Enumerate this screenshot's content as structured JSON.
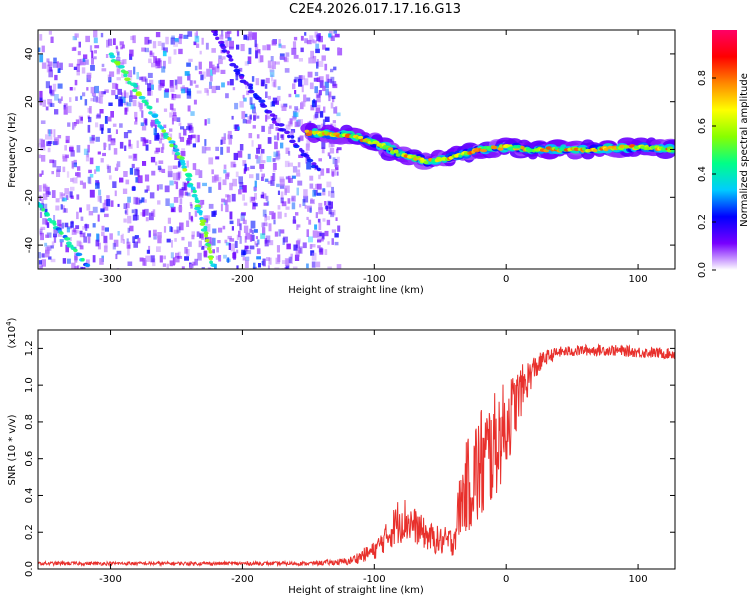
{
  "title": "C2E4.2026.017.17.16.G13",
  "colors": {
    "snr_line": "#e8302c",
    "axis": "#000000",
    "background": "#ffffff"
  },
  "chart_data": [
    {
      "type": "heatmap",
      "name": "spectrogram",
      "xlabel": "Height of straight line (km)",
      "ylabel": "Frequency (Hz)",
      "xlim": [
        -355,
        128
      ],
      "ylim": [
        -50,
        50
      ],
      "xticks": [
        -300,
        -200,
        -100,
        0,
        100
      ],
      "yticks": [
        -40,
        -20,
        0,
        20,
        40
      ],
      "colorbar": {
        "label": "Normalized spectral amplitude",
        "range": [
          0.0,
          1.0
        ],
        "ticks": [
          "0.0",
          "0.2",
          "0.4",
          "0.6",
          "0.8"
        ],
        "tick_values": [
          0.0,
          0.2,
          0.4,
          0.6,
          0.8
        ],
        "colormap": [
          "#ffffff",
          "#7700ff",
          "#0000ff",
          "#00ccff",
          "#00ff88",
          "#88ff00",
          "#ffff00",
          "#ff8800",
          "#ff0000",
          "#ff0066"
        ]
      },
      "features": [
        {
          "name": "noise region",
          "x_range": [
            -355,
            -128
          ],
          "y_range": [
            -50,
            50
          ],
          "level": 0.15
        },
        {
          "name": "diagonal track A",
          "points": [
            [
              -300,
              40
            ],
            [
              -270,
              17
            ],
            [
              -245,
              -5
            ],
            [
              -230,
              -30
            ],
            [
              -222,
              -50
            ]
          ],
          "level": 0.5
        },
        {
          "name": "diagonal track B",
          "points": [
            [
              -355,
              -22
            ],
            [
              -330,
              -40
            ],
            [
              -315,
              -50
            ]
          ],
          "level": 0.4
        },
        {
          "name": "diagonal track C",
          "points": [
            [
              -222,
              50
            ],
            [
              -200,
              30
            ],
            [
              -175,
              12
            ],
            [
              -140,
              -10
            ]
          ],
          "level": 0.2
        },
        {
          "name": "main signal band",
          "points": [
            [
              -150,
              7
            ],
            [
              -120,
              6
            ],
            [
              -100,
              3
            ],
            [
              -80,
              -2
            ],
            [
              -60,
              -5
            ],
            [
              -40,
              -3
            ],
            [
              -20,
              0
            ],
            [
              0,
              1
            ],
            [
              20,
              0
            ],
            [
              60,
              0
            ],
            [
              100,
              1
            ],
            [
              128,
              0
            ]
          ],
          "level": 0.7
        }
      ]
    },
    {
      "type": "line",
      "name": "snr",
      "xlabel": "Height of straight line (km)",
      "ylabel": "SNR (10 * v/v)",
      "ylabel_exponent": "(x10",
      "exponent_power": "4",
      "exponent_close": ")",
      "xlim": [
        -355,
        128
      ],
      "ylim": [
        0.0,
        1.3
      ],
      "xticks": [
        -300,
        -200,
        -100,
        0,
        100
      ],
      "yticks": [
        "0.0",
        "0.2",
        "0.4",
        "0.6",
        "0.8",
        "1.0",
        "1.2"
      ],
      "ytick_values": [
        0.0,
        0.2,
        0.4,
        0.6,
        0.8,
        1.0,
        1.2
      ],
      "series": [
        {
          "name": "SNR",
          "envelope": {
            "x": [
              -355,
              -300,
              -250,
              -200,
              -150,
              -120,
              -100,
              -90,
              -80,
              -70,
              -60,
              -50,
              -40,
              -35,
              -30,
              -20,
              -10,
              0,
              10,
              20,
              30,
              40,
              60,
              80,
              100,
              128
            ],
            "center": [
              0.03,
              0.03,
              0.03,
              0.03,
              0.03,
              0.04,
              0.1,
              0.18,
              0.28,
              0.24,
              0.18,
              0.15,
              0.15,
              0.35,
              0.45,
              0.55,
              0.65,
              0.78,
              0.95,
              1.08,
              1.15,
              1.18,
              1.19,
              1.19,
              1.18,
              1.17
            ],
            "spread": [
              0.01,
              0.01,
              0.01,
              0.01,
              0.01,
              0.02,
              0.05,
              0.08,
              0.14,
              0.1,
              0.08,
              0.08,
              0.08,
              0.18,
              0.25,
              0.35,
              0.3,
              0.25,
              0.15,
              0.08,
              0.04,
              0.03,
              0.03,
              0.03,
              0.03,
              0.03
            ]
          }
        }
      ]
    }
  ]
}
